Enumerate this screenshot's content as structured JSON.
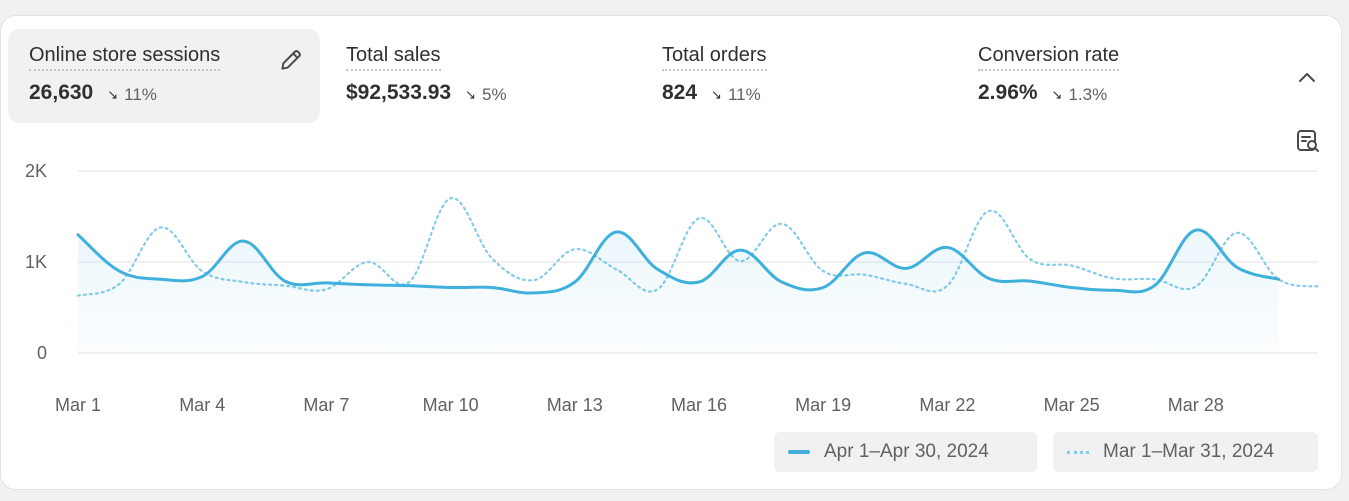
{
  "metrics": [
    {
      "label": "Online store sessions",
      "value": "26,630",
      "change": "11%",
      "direction": "down",
      "active": true
    },
    {
      "label": "Total sales",
      "value": "$92,533.93",
      "change": "5%",
      "direction": "down",
      "active": false
    },
    {
      "label": "Total orders",
      "value": "824",
      "change": "11%",
      "direction": "down",
      "active": false
    },
    {
      "label": "Conversion rate",
      "value": "2.96%",
      "change": "1.3%",
      "direction": "down",
      "active": false
    }
  ],
  "icons": {
    "edit": "pencil-icon",
    "collapse": "chevron-up-icon",
    "zoom": "chart-search-icon",
    "change": "arrow-down-right-icon"
  },
  "colors": {
    "primary_series": "#3fb0dc",
    "comparison_series": "#86cbe8",
    "active_tile": "#f1f1f1"
  },
  "legend": {
    "position": "bottom-right",
    "items": [
      "Apr 1–Apr 30, 2024",
      "Mar 1–Mar 31, 2024"
    ]
  },
  "chart_data": {
    "type": "line",
    "grid": true,
    "ylim": [
      0,
      2000
    ],
    "yticks": [
      {
        "value": 0,
        "label": "0"
      },
      {
        "value": 1000,
        "label": "1K"
      },
      {
        "value": 2000,
        "label": "2K"
      }
    ],
    "x": [
      "Mar 1",
      "Mar 2",
      "Mar 3",
      "Mar 4",
      "Mar 5",
      "Mar 6",
      "Mar 7",
      "Mar 8",
      "Mar 9",
      "Mar 10",
      "Mar 11",
      "Mar 12",
      "Mar 13",
      "Mar 14",
      "Mar 15",
      "Mar 16",
      "Mar 17",
      "Mar 18",
      "Mar 19",
      "Mar 20",
      "Mar 21",
      "Mar 22",
      "Mar 23",
      "Mar 24",
      "Mar 25",
      "Mar 26",
      "Mar 27",
      "Mar 28",
      "Mar 29",
      "Mar 30",
      "Mar 31"
    ],
    "xtick_labels": [
      "Mar 1",
      "Mar 4",
      "Mar 7",
      "Mar 10",
      "Mar 13",
      "Mar 16",
      "Mar 19",
      "Mar 22",
      "Mar 25",
      "Mar 28"
    ],
    "series": [
      {
        "name": "Apr 1–Apr 30, 2024",
        "style": "solid",
        "values": [
          1300,
          900,
          810,
          840,
          1230,
          790,
          770,
          750,
          740,
          720,
          720,
          660,
          780,
          1330,
          920,
          780,
          1130,
          780,
          720,
          1100,
          930,
          1160,
          820,
          790,
          720,
          690,
          740,
          1350,
          940,
          810,
          null
        ]
      },
      {
        "name": "Mar 1–Mar 31, 2024",
        "style": "dotted",
        "values": [
          630,
          760,
          1380,
          900,
          780,
          740,
          700,
          1000,
          780,
          1700,
          1040,
          800,
          1140,
          920,
          700,
          1480,
          1010,
          1420,
          900,
          860,
          760,
          740,
          1560,
          1030,
          960,
          820,
          810,
          730,
          1320,
          810,
          730
        ]
      }
    ]
  }
}
